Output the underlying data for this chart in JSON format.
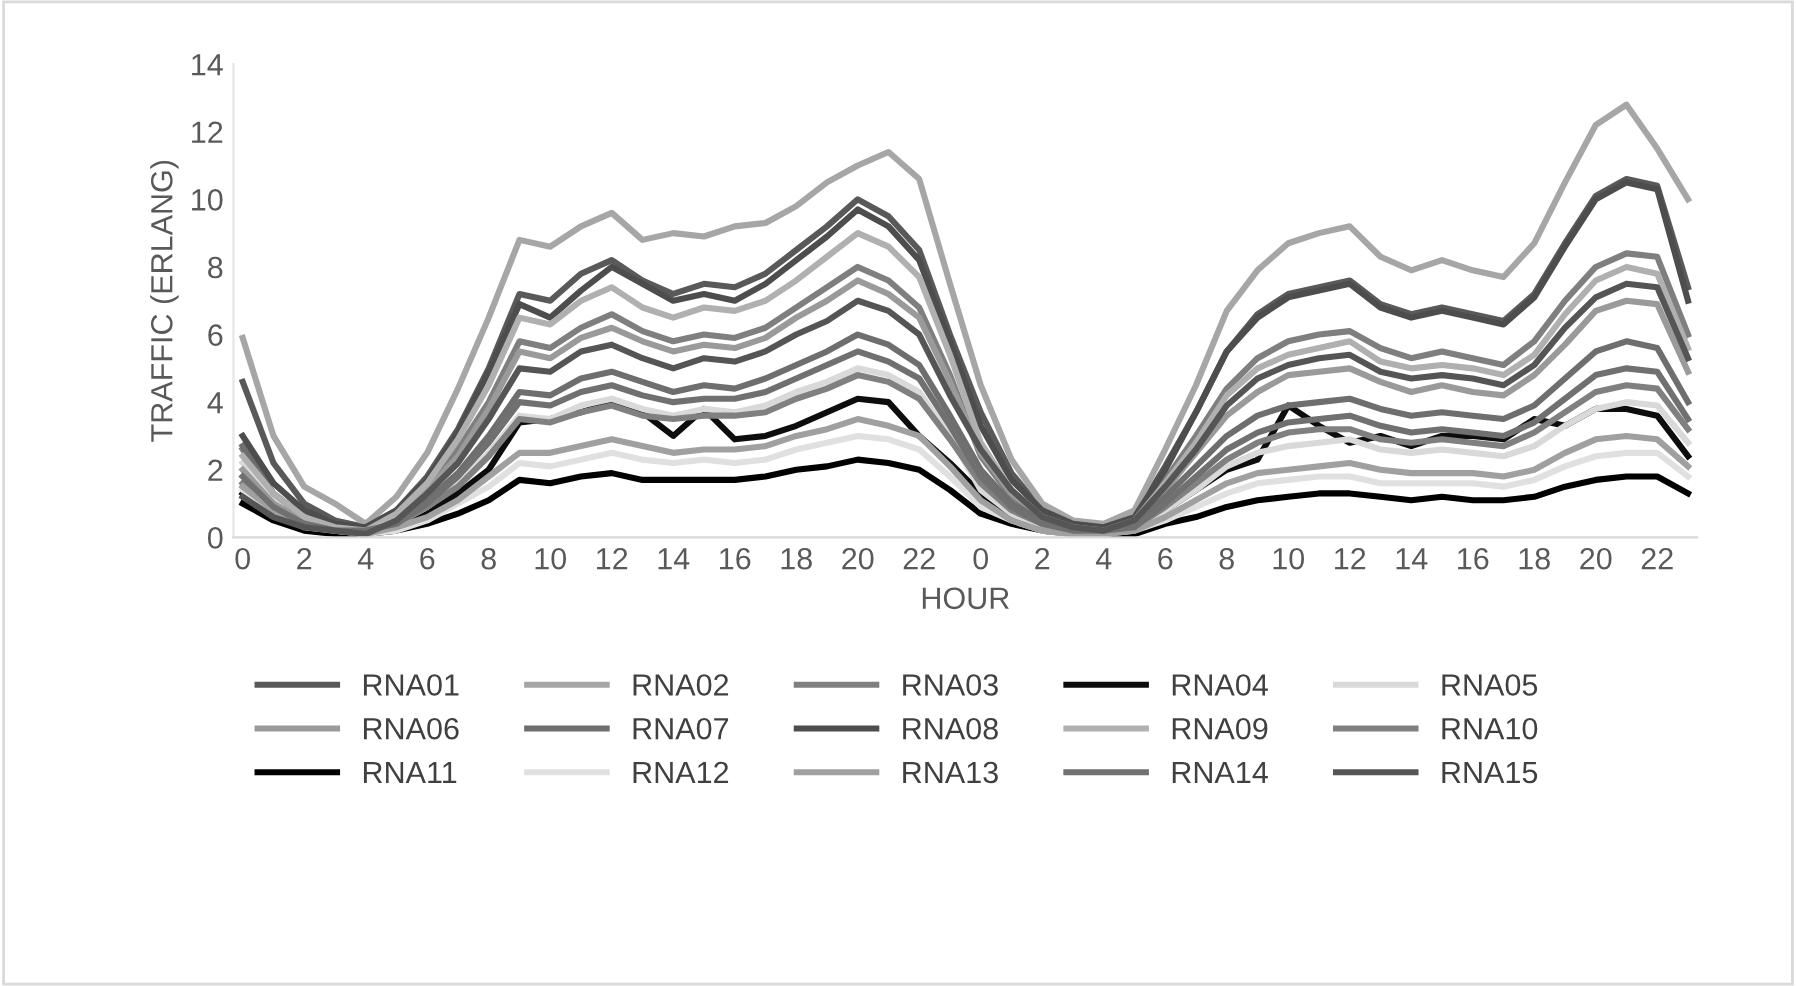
{
  "chart_data": {
    "type": "line",
    "xlabel": "HOUR",
    "ylabel": "TRAFFIC (ERLANG)",
    "categories": [
      "0",
      null,
      "2",
      null,
      "4",
      null,
      "6",
      null,
      "8",
      null,
      "10",
      null,
      "12",
      null,
      "14",
      null,
      "16",
      null,
      "18",
      null,
      "20",
      null,
      "22",
      null,
      "0",
      null,
      "2",
      null,
      "4",
      null,
      "6",
      null,
      "8",
      null,
      "10",
      null,
      "12",
      null,
      "14",
      null,
      "16",
      null,
      "18",
      null,
      "20",
      null,
      "22",
      null
    ],
    "ylim": [
      0,
      14
    ],
    "yticks": [
      0,
      2,
      4,
      6,
      8,
      10,
      12,
      14
    ],
    "grid": false,
    "legend": "bottom",
    "marker": "none",
    "line_style": "solid",
    "series": [
      {
        "name": "RNA01",
        "color": "#595959",
        "values": [
          4.6,
          2.2,
          1.0,
          0.5,
          0.3,
          0.8,
          1.8,
          3.2,
          5.0,
          7.2,
          7.0,
          7.8,
          8.2,
          7.6,
          7.2,
          7.5,
          7.4,
          7.8,
          8.5,
          9.2,
          10.0,
          9.5,
          8.5,
          6.0,
          3.7,
          1.9,
          0.8,
          0.4,
          0.3,
          0.6,
          2.1,
          3.7,
          5.5,
          6.6,
          7.2,
          7.4,
          7.6,
          6.9,
          6.6,
          6.8,
          6.6,
          6.4,
          7.2,
          8.7,
          10.1,
          10.6,
          10.4,
          7.4
        ]
      },
      {
        "name": "RNA02",
        "color": "#a6a6a6",
        "values": [
          5.9,
          3.0,
          1.5,
          1.0,
          0.4,
          1.2,
          2.5,
          4.4,
          6.5,
          8.8,
          8.6,
          9.2,
          9.6,
          8.8,
          9.0,
          8.9,
          9.2,
          9.3,
          9.8,
          10.5,
          11.0,
          11.4,
          10.6,
          7.5,
          4.5,
          2.3,
          1.0,
          0.5,
          0.4,
          0.8,
          2.6,
          4.5,
          6.7,
          7.9,
          8.7,
          9.0,
          9.2,
          8.3,
          7.9,
          8.2,
          7.9,
          7.7,
          8.7,
          10.5,
          12.2,
          12.8,
          11.5,
          10.0
        ]
      },
      {
        "name": "RNA03",
        "color": "#7f7f7f",
        "values": [
          2.6,
          1.2,
          0.6,
          0.3,
          0.2,
          0.6,
          1.4,
          2.6,
          4.0,
          5.8,
          5.6,
          6.2,
          6.6,
          6.1,
          5.8,
          6.0,
          5.9,
          6.2,
          6.8,
          7.4,
          8.0,
          7.6,
          6.8,
          4.8,
          2.4,
          1.2,
          0.5,
          0.3,
          0.2,
          0.5,
          1.7,
          3.0,
          4.4,
          5.3,
          5.8,
          6.0,
          6.1,
          5.6,
          5.3,
          5.5,
          5.3,
          5.1,
          5.8,
          7.0,
          8.0,
          8.4,
          8.3,
          6.0
        ]
      },
      {
        "name": "RNA04",
        "color": "#0d0d0d",
        "values": [
          1.3,
          0.7,
          0.3,
          0.2,
          0.1,
          0.3,
          0.7,
          1.3,
          2.0,
          3.4,
          3.5,
          3.7,
          4.0,
          3.7,
          3.0,
          3.8,
          2.9,
          3.0,
          3.3,
          3.7,
          4.1,
          4.0,
          3.0,
          2.2,
          1.3,
          0.6,
          0.3,
          0.2,
          0.1,
          0.3,
          0.8,
          1.4,
          2.0,
          2.3,
          3.9,
          3.3,
          2.8,
          3.0,
          2.7,
          3.0,
          3.0,
          2.9,
          3.5,
          3.3,
          3.8,
          3.8,
          3.6,
          2.4
        ]
      },
      {
        "name": "RNA05",
        "color": "#d9d9d9",
        "values": [
          2.2,
          1.1,
          0.6,
          0.3,
          0.2,
          0.4,
          0.9,
          1.6,
          2.5,
          3.6,
          3.5,
          3.9,
          4.1,
          3.8,
          3.6,
          3.8,
          3.7,
          3.9,
          4.3,
          4.6,
          5.0,
          4.8,
          4.3,
          3.0,
          1.4,
          0.7,
          0.3,
          0.2,
          0.1,
          0.2,
          0.8,
          1.4,
          2.1,
          2.5,
          2.7,
          2.8,
          2.9,
          2.6,
          2.5,
          2.6,
          2.5,
          2.4,
          2.7,
          3.3,
          3.8,
          4.0,
          3.9,
          2.8
        ]
      },
      {
        "name": "RNA06",
        "color": "#9a9a9a",
        "values": [
          2.0,
          1.0,
          0.5,
          0.3,
          0.2,
          0.5,
          1.4,
          2.4,
          3.8,
          5.5,
          5.3,
          5.9,
          6.2,
          5.8,
          5.5,
          5.7,
          5.6,
          5.9,
          6.5,
          7.0,
          7.6,
          7.2,
          6.5,
          4.6,
          2.5,
          1.3,
          0.6,
          0.3,
          0.2,
          0.4,
          1.4,
          2.5,
          3.6,
          4.3,
          4.8,
          4.9,
          5.0,
          4.6,
          4.3,
          4.5,
          4.3,
          4.2,
          4.8,
          5.7,
          6.7,
          7.0,
          6.9,
          4.9
        ]
      },
      {
        "name": "RNA07",
        "color": "#6e6e6e",
        "values": [
          2.7,
          1.3,
          0.6,
          0.3,
          0.2,
          0.5,
          1.1,
          1.9,
          3.0,
          4.3,
          4.2,
          4.7,
          4.9,
          4.6,
          4.3,
          4.5,
          4.4,
          4.7,
          5.1,
          5.5,
          6.0,
          5.7,
          5.1,
          3.6,
          2.0,
          1.0,
          0.5,
          0.3,
          0.2,
          0.4,
          1.2,
          2.1,
          3.0,
          3.6,
          3.9,
          4.0,
          4.1,
          3.8,
          3.6,
          3.7,
          3.6,
          3.5,
          3.9,
          4.7,
          5.5,
          5.8,
          5.6,
          4.0
        ]
      },
      {
        "name": "RNA08",
        "color": "#4d4d4d",
        "values": [
          3.0,
          1.6,
          0.8,
          0.4,
          0.3,
          0.8,
          1.7,
          3.1,
          4.9,
          6.9,
          6.5,
          7.3,
          8.0,
          7.5,
          7.0,
          7.2,
          7.0,
          7.5,
          8.2,
          8.9,
          9.7,
          9.2,
          8.2,
          5.8,
          3.3,
          1.7,
          0.8,
          0.4,
          0.3,
          0.6,
          2.0,
          3.7,
          5.5,
          6.5,
          7.1,
          7.3,
          7.5,
          6.8,
          6.5,
          6.7,
          6.5,
          6.3,
          7.1,
          8.6,
          10.0,
          10.5,
          10.3,
          7.0
        ]
      },
      {
        "name": "RNA09",
        "color": "#b0b0b0",
        "values": [
          2.4,
          1.3,
          0.6,
          0.3,
          0.2,
          0.7,
          1.6,
          2.9,
          4.5,
          6.5,
          6.3,
          7.0,
          7.4,
          6.8,
          6.5,
          6.8,
          6.7,
          7.0,
          7.6,
          8.3,
          9.0,
          8.6,
          7.7,
          5.4,
          2.8,
          1.4,
          0.6,
          0.3,
          0.2,
          0.5,
          1.6,
          2.8,
          4.2,
          5.0,
          5.4,
          5.6,
          5.8,
          5.2,
          5.0,
          5.1,
          5.0,
          4.8,
          5.4,
          6.6,
          7.6,
          8.0,
          7.8,
          5.6
        ]
      },
      {
        "name": "RNA10",
        "color": "#808080",
        "values": [
          1.6,
          0.8,
          0.4,
          0.2,
          0.1,
          0.4,
          0.9,
          1.5,
          2.4,
          3.5,
          3.4,
          3.7,
          3.9,
          3.6,
          3.5,
          3.6,
          3.6,
          3.7,
          4.1,
          4.4,
          4.8,
          4.6,
          4.1,
          2.9,
          1.6,
          0.8,
          0.4,
          0.2,
          0.1,
          0.3,
          0.9,
          1.6,
          2.3,
          2.8,
          3.1,
          3.2,
          3.2,
          2.9,
          2.8,
          2.9,
          2.8,
          2.7,
          3.1,
          3.7,
          4.3,
          4.5,
          4.4,
          3.2
        ]
      },
      {
        "name": "RNA11",
        "color": "#000000",
        "values": [
          1.0,
          0.5,
          0.2,
          0.1,
          0.1,
          0.2,
          0.4,
          0.7,
          1.1,
          1.7,
          1.6,
          1.8,
          1.9,
          1.7,
          1.7,
          1.7,
          1.7,
          1.8,
          2.0,
          2.1,
          2.3,
          2.2,
          2.0,
          1.4,
          0.7,
          0.4,
          0.2,
          0.1,
          0.1,
          0.1,
          0.4,
          0.6,
          0.9,
          1.1,
          1.2,
          1.3,
          1.3,
          1.2,
          1.1,
          1.2,
          1.1,
          1.1,
          1.2,
          1.5,
          1.7,
          1.8,
          1.8,
          1.3
        ]
      },
      {
        "name": "RNA12",
        "color": "#e0e0e0",
        "values": [
          1.4,
          0.7,
          0.3,
          0.2,
          0.1,
          0.2,
          0.5,
          1.0,
          1.5,
          2.2,
          2.1,
          2.3,
          2.5,
          2.3,
          2.2,
          2.3,
          2.2,
          2.3,
          2.6,
          2.8,
          3.0,
          2.9,
          2.6,
          1.8,
          0.9,
          0.5,
          0.2,
          0.1,
          0.1,
          0.2,
          0.5,
          0.9,
          1.3,
          1.6,
          1.7,
          1.8,
          1.8,
          1.6,
          1.6,
          1.6,
          1.6,
          1.5,
          1.7,
          2.1,
          2.4,
          2.5,
          2.5,
          1.8
        ]
      },
      {
        "name": "RNA13",
        "color": "#a0a0a0",
        "values": [
          1.5,
          0.8,
          0.4,
          0.2,
          0.1,
          0.3,
          0.6,
          1.1,
          1.8,
          2.5,
          2.5,
          2.7,
          2.9,
          2.7,
          2.5,
          2.6,
          2.6,
          2.7,
          3.0,
          3.2,
          3.5,
          3.3,
          3.0,
          2.1,
          1.1,
          0.5,
          0.2,
          0.1,
          0.1,
          0.2,
          0.6,
          1.1,
          1.6,
          1.9,
          2.0,
          2.1,
          2.2,
          2.0,
          1.9,
          1.9,
          1.9,
          1.8,
          2.0,
          2.5,
          2.9,
          3.0,
          2.9,
          2.1
        ]
      },
      {
        "name": "RNA14",
        "color": "#707070",
        "values": [
          1.8,
          0.9,
          0.4,
          0.2,
          0.2,
          0.4,
          1.0,
          1.8,
          2.8,
          4.0,
          3.9,
          4.3,
          4.5,
          4.2,
          4.0,
          4.1,
          4.1,
          4.3,
          4.7,
          5.1,
          5.5,
          5.2,
          4.7,
          3.3,
          1.8,
          0.9,
          0.4,
          0.2,
          0.2,
          0.3,
          1.0,
          1.8,
          2.6,
          3.1,
          3.4,
          3.5,
          3.6,
          3.3,
          3.1,
          3.2,
          3.1,
          3.0,
          3.4,
          4.1,
          4.8,
          5.0,
          4.9,
          3.5
        ]
      },
      {
        "name": "RNA15",
        "color": "#555555",
        "values": [
          1.2,
          0.6,
          0.3,
          0.2,
          0.1,
          0.5,
          1.3,
          2.2,
          3.5,
          5.0,
          4.9,
          5.5,
          5.7,
          5.3,
          5.0,
          5.3,
          5.2,
          5.5,
          6.0,
          6.4,
          7.0,
          6.7,
          6.0,
          4.2,
          2.6,
          1.4,
          0.6,
          0.3,
          0.2,
          0.5,
          1.5,
          2.6,
          3.9,
          4.7,
          5.1,
          5.3,
          5.4,
          4.9,
          4.7,
          4.8,
          4.7,
          4.5,
          5.1,
          6.2,
          7.1,
          7.5,
          7.4,
          5.3
        ]
      }
    ]
  }
}
